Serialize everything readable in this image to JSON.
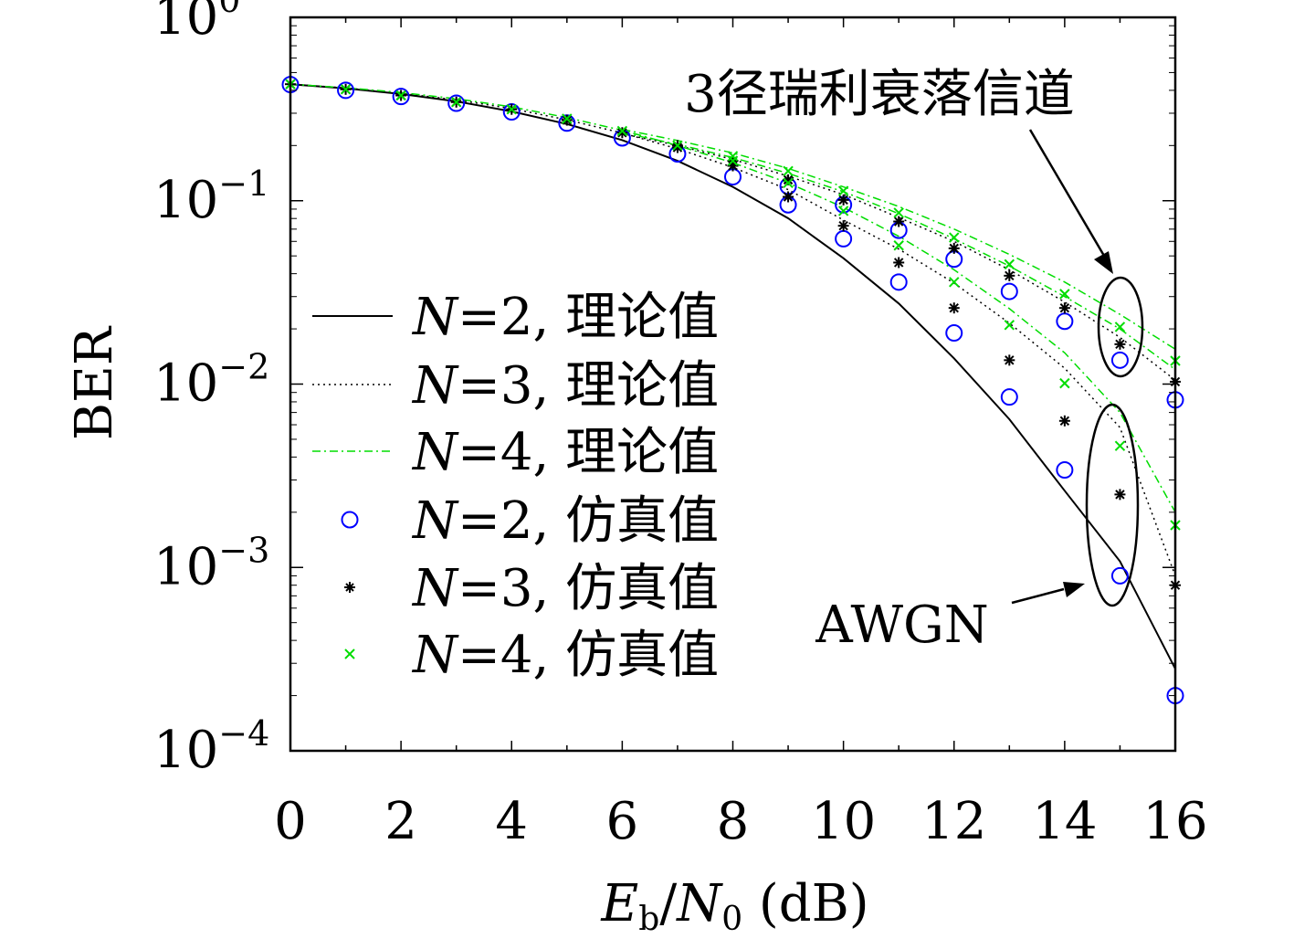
{
  "chart_data": {
    "type": "line",
    "xlabel_parts": {
      "main": "E",
      "sub": "b",
      "slash": "/",
      "main2": "N",
      "sub2": "0",
      "unit": " (dB)"
    },
    "ylabel": "BER",
    "x_ticks": [
      "0",
      "2",
      "4",
      "6",
      "8",
      "10",
      "12",
      "14",
      "16"
    ],
    "y_ticks": [
      {
        "base": "10",
        "exp": "0"
      },
      {
        "base": "10",
        "exp": "−1"
      },
      {
        "base": "10",
        "exp": "−2"
      },
      {
        "base": "10",
        "exp": "−3"
      },
      {
        "base": "10",
        "exp": "−4"
      }
    ],
    "xlim": [
      0,
      16
    ],
    "ylim": [
      0.0001,
      1
    ],
    "yscale": "log",
    "grid": false,
    "legend_position": "left",
    "series": [
      {
        "name": "N=2, 理论值",
        "legend_n": "N",
        "legend_rest": "=2, 理论值",
        "kind": "line",
        "style": "solid",
        "color": "#000000",
        "groups": [
          {
            "x": [
              0,
              1,
              2,
              3,
              4,
              5,
              6,
              7,
              8,
              9,
              10,
              11,
              12,
              13,
              14,
              15,
              16
            ],
            "y": [
              0.432,
              0.41,
              0.382,
              0.348,
              0.307,
              0.262,
              0.214,
              0.165,
              0.119,
              0.0802,
              0.0486,
              0.0275,
              0.0138,
              0.00643,
              0.00262,
              0.00108,
              0.00028
            ]
          }
        ]
      },
      {
        "name": "N=3, 理论值",
        "legend_n": "N",
        "legend_rest": "=3, 理论值",
        "kind": "line",
        "style": "dotted",
        "color": "#000000",
        "groups": [
          {
            "x": [
              0,
              1,
              2,
              3,
              4,
              5,
              6,
              7,
              8,
              9,
              10,
              11,
              12,
              13,
              14,
              15,
              16
            ],
            "y": [
              0.432,
              0.412,
              0.385,
              0.355,
              0.318,
              0.276,
              0.234,
              0.192,
              0.152,
              0.115,
              0.0785,
              0.0545,
              0.0355,
              0.0215,
              0.0122,
              0.0058,
              0.0009
            ]
          },
          {
            "x": [
              6,
              7,
              8,
              9,
              10,
              11,
              12,
              13,
              14,
              15,
              16
            ],
            "y": [
              0.232,
              0.2,
              0.168,
              0.136,
              0.108,
              0.081,
              0.06,
              0.042,
              0.028,
              0.018,
              0.0105
            ]
          }
        ]
      },
      {
        "name": "N=4, 理论值",
        "legend_n": "N",
        "legend_rest": "=4, 理论值",
        "kind": "line",
        "style": "dashdot",
        "color": "#00dd00",
        "groups": [
          {
            "x": [
              0,
              1,
              2,
              3,
              4,
              5,
              6,
              7,
              8,
              9,
              10,
              11,
              12,
              13,
              14,
              15,
              16
            ],
            "y": [
              0.432,
              0.413,
              0.389,
              0.36,
              0.325,
              0.284,
              0.242,
              0.2,
              0.161,
              0.125,
              0.092,
              0.064,
              0.042,
              0.0258,
              0.0148,
              0.007,
              0.002
            ]
          },
          {
            "x": [
              6,
              7,
              8,
              9,
              10,
              11,
              12,
              13,
              14,
              15,
              16
            ],
            "y": [
              0.245,
              0.213,
              0.182,
              0.15,
              0.119,
              0.093,
              0.07,
              0.051,
              0.036,
              0.024,
              0.0155
            ]
          },
          {
            "x": [
              6,
              7,
              8,
              9,
              10,
              11,
              12,
              13,
              14,
              15,
              16
            ],
            "y": [
              0.235,
              0.203,
              0.172,
              0.141,
              0.112,
              0.085,
              0.062,
              0.044,
              0.03,
              0.02,
              0.012
            ]
          }
        ]
      },
      {
        "name": "N=2, 仿真值",
        "legend_n": "N",
        "legend_rest": "=2, 仿真值",
        "kind": "marker",
        "marker": "circle",
        "color": "#0000ff",
        "groups": [
          {
            "x": [
              0,
              1,
              2,
              3,
              4,
              5,
              6,
              7,
              8,
              9,
              10,
              11,
              12,
              13,
              14,
              15,
              16
            ],
            "y": [
              0.43,
              0.4,
              0.37,
              0.34,
              0.305,
              0.265,
              0.22,
              0.18,
              0.135,
              0.095,
              0.062,
              0.036,
              0.019,
              0.0085,
              0.0034,
              0.0009,
              0.0002
            ]
          },
          {
            "x": [
              9,
              10,
              11,
              12,
              13,
              14,
              15,
              16
            ],
            "y": [
              0.12,
              0.095,
              0.069,
              0.048,
              0.032,
              0.022,
              0.0135,
              0.0082
            ]
          }
        ]
      },
      {
        "name": "N=3, 仿真值",
        "legend_n": "N",
        "legend_rest": "=3, 仿真值",
        "kind": "marker",
        "marker": "star",
        "color": "#000000",
        "groups": [
          {
            "x": [
              0,
              1,
              2,
              3,
              4,
              5,
              6,
              7,
              8,
              9,
              10,
              11,
              12,
              13,
              14,
              15,
              16
            ],
            "y": [
              0.432,
              0.405,
              0.375,
              0.345,
              0.315,
              0.275,
              0.235,
              0.195,
              0.155,
              0.105,
              0.073,
              0.046,
              0.026,
              0.0135,
              0.0063,
              0.0025,
              0.0008
            ]
          },
          {
            "x": [
              7,
              8,
              9,
              10,
              11,
              12,
              13,
              14,
              15,
              16
            ],
            "y": [
              0.2,
              0.165,
              0.13,
              0.101,
              0.077,
              0.055,
              0.039,
              0.026,
              0.0165,
              0.0103
            ]
          }
        ]
      },
      {
        "name": "N=4, 仿真值",
        "legend_n": "N",
        "legend_rest": "=4, 仿真值",
        "kind": "marker",
        "marker": "x",
        "color": "#00dd00",
        "groups": [
          {
            "x": [
              0,
              1,
              2,
              3,
              4,
              5,
              6,
              7,
              8,
              9,
              10,
              11,
              12,
              13,
              14,
              15,
              16
            ],
            "y": [
              0.432,
              0.405,
              0.375,
              0.345,
              0.315,
              0.28,
              0.24,
              0.2,
              0.165,
              0.125,
              0.088,
              0.057,
              0.036,
              0.021,
              0.0101,
              0.0046,
              0.0017
            ]
          },
          {
            "x": [
              8,
              9,
              10,
              11,
              12,
              13,
              14,
              15,
              16
            ],
            "y": [
              0.175,
              0.145,
              0.113,
              0.086,
              0.063,
              0.045,
              0.031,
              0.0205,
              0.0134
            ]
          }
        ]
      }
    ],
    "annotations": [
      {
        "text": "3径瑞利衰落信道"
      },
      {
        "text": "AWGN"
      }
    ]
  }
}
